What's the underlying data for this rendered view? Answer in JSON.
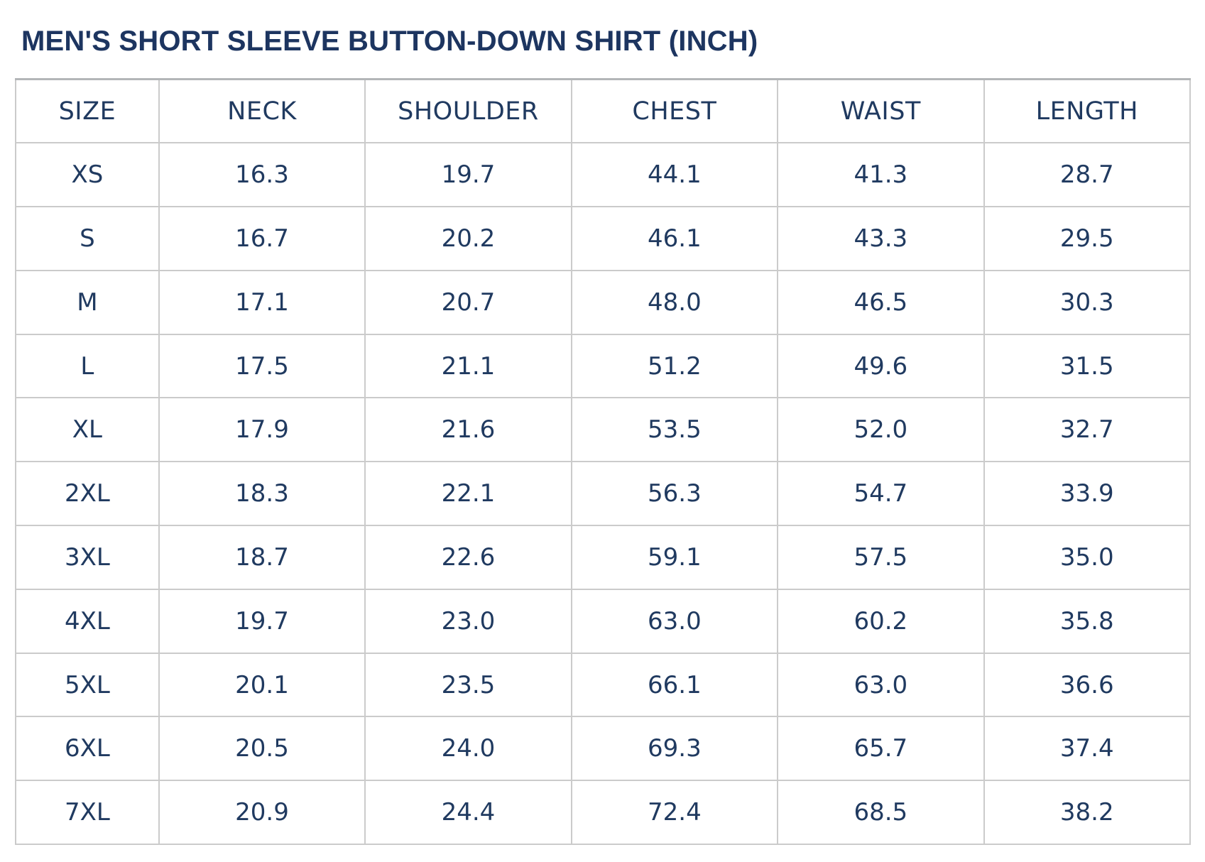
{
  "title": "MEN'S SHORT SLEEVE BUTTON-DOWN SHIRT (INCH)",
  "units": "INCH",
  "colors": {
    "text": "#203a60",
    "title": "#1d3560",
    "border": "#cbcbcb",
    "table_top_border": "#b3b6b8",
    "background": "#ffffff"
  },
  "table": {
    "columns": [
      "SIZE",
      "NECK",
      "SHOULDER",
      "CHEST",
      "WAIST",
      "LENGTH"
    ],
    "rows": [
      [
        "XS",
        "16.3",
        "19.7",
        "44.1",
        "41.3",
        "28.7"
      ],
      [
        "S",
        "16.7",
        "20.2",
        "46.1",
        "43.3",
        "29.5"
      ],
      [
        "M",
        "17.1",
        "20.7",
        "48.0",
        "46.5",
        "30.3"
      ],
      [
        "L",
        "17.5",
        "21.1",
        "51.2",
        "49.6",
        "31.5"
      ],
      [
        "XL",
        "17.9",
        "21.6",
        "53.5",
        "52.0",
        "32.7"
      ],
      [
        "2XL",
        "18.3",
        "22.1",
        "56.3",
        "54.7",
        "33.9"
      ],
      [
        "3XL",
        "18.7",
        "22.6",
        "59.1",
        "57.5",
        "35.0"
      ],
      [
        "4XL",
        "19.7",
        "23.0",
        "63.0",
        "60.2",
        "35.8"
      ],
      [
        "5XL",
        "20.1",
        "23.5",
        "66.1",
        "63.0",
        "36.6"
      ],
      [
        "6XL",
        "20.5",
        "24.0",
        "69.3",
        "65.7",
        "37.4"
      ],
      [
        "7XL",
        "20.9",
        "24.4",
        "72.4",
        "68.5",
        "38.2"
      ]
    ]
  }
}
